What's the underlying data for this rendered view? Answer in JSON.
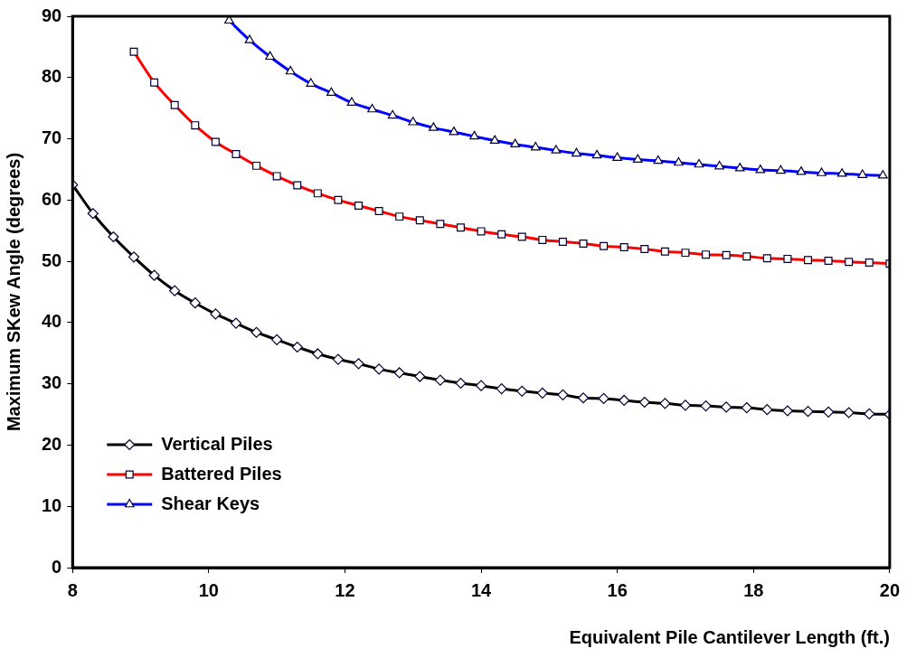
{
  "chart_data": {
    "type": "line",
    "xlabel": "Equivalent Pile Cantilever Length (ft.)",
    "ylabel": "Maximum SKew Angle (degrees)",
    "xlim": [
      8,
      20
    ],
    "xticks": [
      8,
      10,
      12,
      14,
      16,
      18,
      20
    ],
    "ylim": [
      0,
      90
    ],
    "yticks": [
      0,
      10,
      20,
      30,
      40,
      50,
      60,
      70,
      80,
      90
    ],
    "grid": false,
    "legend": "bottom left",
    "line_style": "solid",
    "series": [
      {
        "name": "Vertical Piles",
        "color": "#000000",
        "marker": "diamond",
        "x": [
          8,
          8.3,
          8.6,
          8.9,
          9.2,
          9.5,
          9.8,
          10.1,
          10.4,
          10.7,
          11,
          11.3,
          11.6,
          11.9,
          12.2,
          12.5,
          12.8,
          13.1,
          13.4,
          13.7,
          14,
          14.3,
          14.6,
          14.9,
          15.2,
          15.5,
          15.8,
          16.1,
          16.4,
          16.7,
          17,
          17.3,
          17.6,
          17.9,
          18.2,
          18.5,
          18.8,
          19.1,
          19.4,
          19.7,
          20
        ],
        "values": [
          62.5,
          57.8,
          54,
          50.7,
          47.7,
          45.2,
          43.2,
          41.4,
          39.9,
          38.4,
          37.2,
          36,
          34.9,
          34,
          33.3,
          32.4,
          31.8,
          31.2,
          30.6,
          30.1,
          29.7,
          29.2,
          28.8,
          28.5,
          28.2,
          27.7,
          27.6,
          27.3,
          27,
          26.8,
          26.5,
          26.4,
          26.2,
          26.1,
          25.8,
          25.6,
          25.5,
          25.4,
          25.3,
          25.1,
          25
        ]
      },
      {
        "name": "Battered Piles",
        "color": "#ff0000",
        "marker": "square",
        "x": [
          8.9,
          9.2,
          9.5,
          9.8,
          10.1,
          10.4,
          10.7,
          11,
          11.3,
          11.6,
          11.9,
          12.2,
          12.5,
          12.8,
          13.1,
          13.4,
          13.7,
          14,
          14.3,
          14.6,
          14.9,
          15.2,
          15.5,
          15.8,
          16.1,
          16.4,
          16.7,
          17,
          17.3,
          17.6,
          17.9,
          18.2,
          18.5,
          18.8,
          19.1,
          19.4,
          19.7,
          20
        ],
        "values": [
          84.2,
          79.2,
          75.5,
          72.2,
          69.5,
          67.5,
          65.6,
          63.9,
          62.4,
          61.1,
          60,
          59.1,
          58.2,
          57.3,
          56.7,
          56.1,
          55.5,
          54.9,
          54.4,
          54,
          53.5,
          53.2,
          52.9,
          52.5,
          52.3,
          52,
          51.6,
          51.4,
          51.1,
          51,
          50.8,
          50.5,
          50.4,
          50.2,
          50.1,
          49.9,
          49.8,
          49.6
        ]
      },
      {
        "name": "Shear Keys",
        "color": "#0000ff",
        "marker": "triangle",
        "x": [
          10.3,
          10.6,
          10.9,
          11.2,
          11.5,
          11.8,
          12.1,
          12.4,
          12.7,
          13,
          13.3,
          13.6,
          13.9,
          14.2,
          14.5,
          14.8,
          15.1,
          15.4,
          15.7,
          16,
          16.3,
          16.6,
          16.9,
          17.2,
          17.5,
          17.8,
          18.1,
          18.4,
          18.7,
          19,
          19.3,
          19.6,
          19.9
        ],
        "values": [
          89.3,
          86.1,
          83.4,
          81,
          79,
          77.5,
          75.9,
          74.8,
          73.8,
          72.7,
          71.8,
          71.1,
          70.4,
          69.7,
          69.1,
          68.6,
          68.1,
          67.6,
          67.3,
          66.9,
          66.6,
          66.4,
          66.1,
          65.8,
          65.5,
          65.2,
          64.9,
          64.8,
          64.6,
          64.4,
          64.3,
          64.1,
          64
        ]
      }
    ]
  }
}
